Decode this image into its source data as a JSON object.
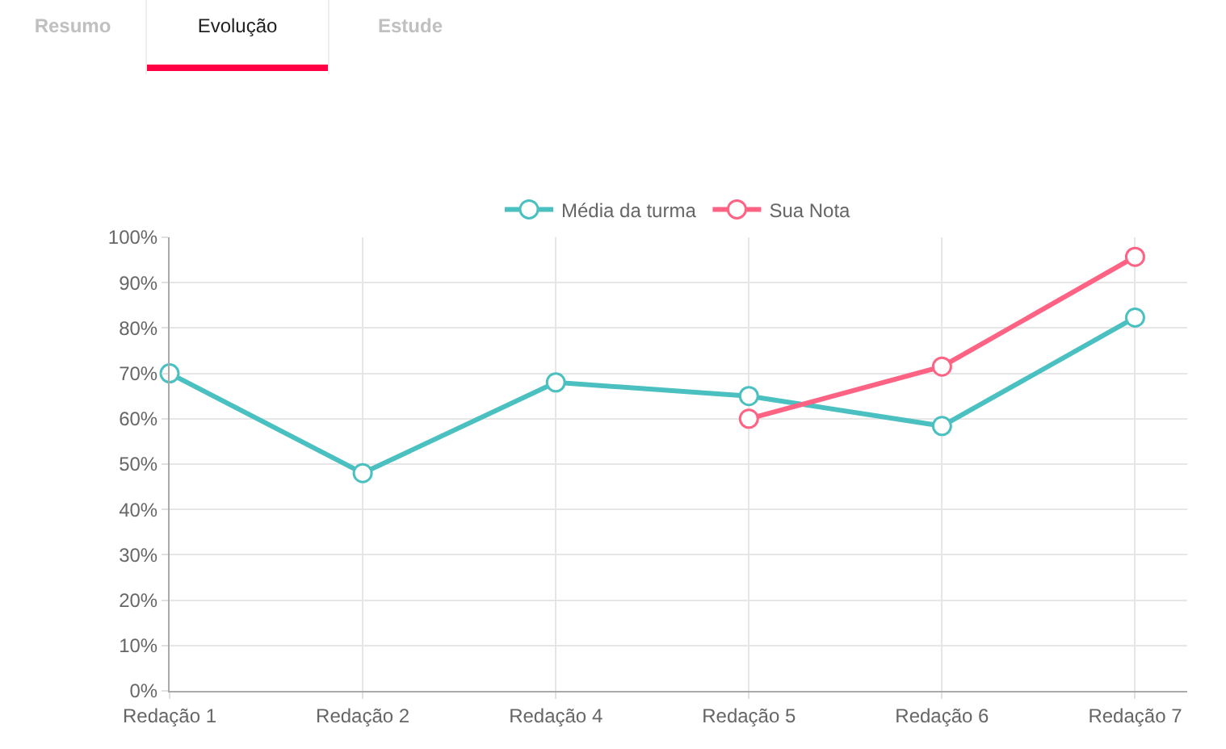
{
  "chart_data": {
    "type": "line",
    "annotations": [
      "Resumo",
      "Evolução",
      "Estude"
    ],
    "categories": [
      "Redação 1",
      "Redação 2",
      "Redação 4",
      "Redação 5",
      "Redação 6",
      "Redação 7"
    ],
    "series": [
      {
        "name": "Média da turma",
        "color": "#4bc0c0",
        "values": [
          70,
          48,
          68,
          65,
          58.4,
          82.3
        ]
      },
      {
        "name": "Sua Nota",
        "color": "#ff6384",
        "values": [
          null,
          null,
          null,
          60,
          71.5,
          95.7
        ]
      }
    ],
    "ylim": [
      0,
      100
    ],
    "yticks": [
      {
        "value": 0,
        "label": "0%"
      },
      {
        "value": 10,
        "label": "10%"
      },
      {
        "value": 20,
        "label": "20%"
      },
      {
        "value": 30,
        "label": "30%"
      },
      {
        "value": 40,
        "label": "40%"
      },
      {
        "value": 50,
        "label": "50%"
      },
      {
        "value": 60,
        "label": "60%"
      },
      {
        "value": 70,
        "label": "70%"
      },
      {
        "value": 80,
        "label": "80%"
      },
      {
        "value": 90,
        "label": "90%"
      },
      {
        "value": 100,
        "label": "100%"
      }
    ],
    "grid": true,
    "legend": "top",
    "marker": "circle",
    "line_style": "solid"
  }
}
